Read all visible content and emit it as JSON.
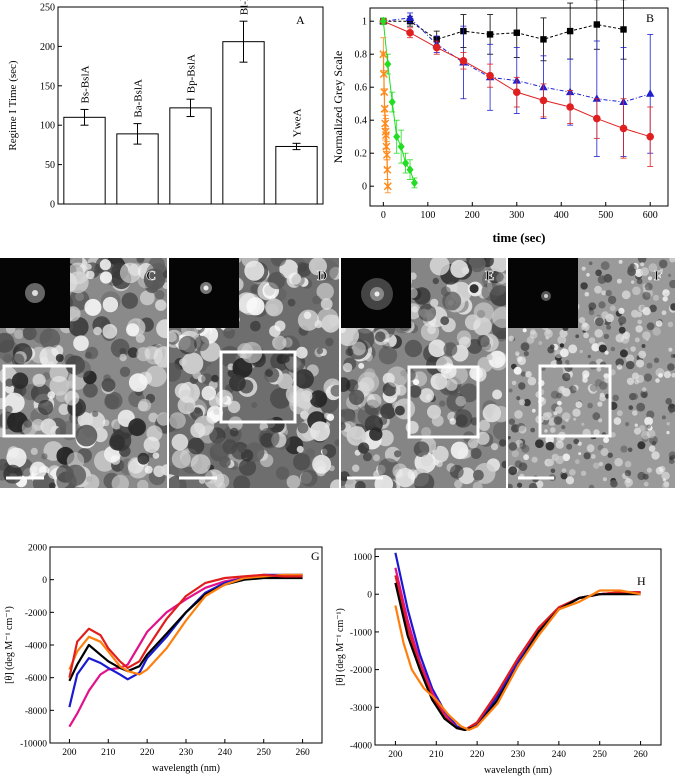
{
  "panel_labels": {
    "a": "A",
    "b": "B",
    "c": "C",
    "d": "D",
    "e": "E",
    "f": "F",
    "g": "G",
    "h": "H"
  },
  "chart_data": [
    {
      "id": "A",
      "type": "bar",
      "ylabel": "Regime I Time (sec)",
      "xlabel": "",
      "ylim": [
        0,
        250
      ],
      "yticks": [
        0,
        50,
        100,
        150,
        200,
        250
      ],
      "categories": [
        "Bs-BslA",
        "Ba-BslA",
        "Bp-BslA",
        "Bl-BslA",
        "YweA"
      ],
      "values": [
        110,
        89,
        122,
        206,
        73
      ],
      "errors": [
        10,
        13,
        11,
        26,
        4
      ],
      "grid": false
    },
    {
      "id": "B",
      "type": "scatter",
      "xlabel": "time (sec)",
      "ylabel": "Normalized Grey Scale",
      "xlim": [
        -30,
        640
      ],
      "ylim": [
        -0.12,
        1.08
      ],
      "xticks": [
        0,
        100,
        200,
        300,
        400,
        500,
        600
      ],
      "yticks": [
        0.0,
        0.2,
        0.4,
        0.6,
        0.8,
        1.0
      ],
      "grid": false,
      "series": [
        {
          "color": "#000000",
          "marker": "square",
          "dash": "3,2",
          "x": [
            0,
            60,
            120,
            180,
            240,
            300,
            360,
            420,
            480,
            540
          ],
          "y": [
            1.0,
            1.0,
            0.89,
            0.94,
            0.92,
            0.93,
            0.89,
            0.94,
            0.98,
            0.95
          ],
          "err": [
            0.02,
            0.03,
            0.05,
            0.1,
            0.12,
            0.15,
            0.13,
            0.17,
            0.15,
            0.18
          ]
        },
        {
          "color": "#1f1fd0",
          "marker": "triangle",
          "dash": "4,2,1,2",
          "x": [
            0,
            60,
            120,
            180,
            240,
            300,
            360,
            420,
            480,
            540,
            600
          ],
          "y": [
            1.0,
            1.02,
            0.86,
            0.75,
            0.66,
            0.64,
            0.6,
            0.57,
            0.53,
            0.51,
            0.56
          ],
          "err": [
            0.02,
            0.03,
            0.05,
            0.22,
            0.2,
            0.2,
            0.19,
            0.2,
            0.35,
            0.33,
            0.36
          ]
        },
        {
          "color": "#e02020",
          "marker": "circle",
          "dash": "",
          "x": [
            0,
            60,
            120,
            180,
            240,
            300,
            360,
            420,
            480,
            540,
            600
          ],
          "y": [
            1.0,
            0.93,
            0.84,
            0.76,
            0.67,
            0.57,
            0.52,
            0.48,
            0.41,
            0.35,
            0.3
          ],
          "err": [
            0.02,
            0.03,
            0.04,
            0.05,
            0.07,
            0.09,
            0.1,
            0.1,
            0.12,
            0.18,
            0.18
          ]
        },
        {
          "color": "#22dd22",
          "marker": "diamond",
          "dash": "",
          "x": [
            0,
            10,
            20,
            30,
            40,
            50,
            60,
            70
          ],
          "y": [
            1.0,
            0.74,
            0.51,
            0.3,
            0.24,
            0.14,
            0.1,
            0.02
          ],
          "err": [
            0.02,
            0.06,
            0.06,
            0.1,
            0.1,
            0.06,
            0.06,
            0.03
          ]
        },
        {
          "color": "#ff8a1a",
          "marker": "star",
          "dash": "",
          "x": [
            0,
            1,
            2,
            3,
            4,
            5,
            6,
            7,
            8,
            9,
            10
          ],
          "y": [
            0.8,
            0.68,
            0.57,
            0.47,
            0.38,
            0.33,
            0.31,
            0.24,
            0.19,
            0.1,
            0.0
          ],
          "err": [
            0.1,
            0.12,
            0.12,
            0.12,
            0.1,
            0.1,
            0.1,
            0.08,
            0.08,
            0.06,
            0.04
          ]
        }
      ]
    },
    {
      "id": "G",
      "type": "line",
      "xlabel": "wavelength (nm)",
      "ylabel": "[θ] (deg M⁻¹ cm⁻¹)",
      "xlim": [
        195,
        265
      ],
      "ylim": [
        -10000,
        2000
      ],
      "xticks": [
        200,
        210,
        220,
        230,
        240,
        250,
        260
      ],
      "yticks": [
        -10000,
        -8000,
        -6000,
        -4000,
        -2000,
        0,
        2000
      ],
      "grid": false,
      "series": [
        {
          "color": "#e2138a",
          "x": [
            200,
            202,
            205,
            208,
            210,
            213,
            215,
            218,
            220,
            225,
            230,
            235,
            240,
            245,
            250,
            255,
            260
          ],
          "y": [
            -9000,
            -8200,
            -6800,
            -5800,
            -5500,
            -5400,
            -5200,
            -4000,
            -3200,
            -2000,
            -1200,
            -500,
            -100,
            100,
            200,
            250,
            300
          ]
        },
        {
          "color": "#1a1ad0",
          "x": [
            200,
            202,
            205,
            208,
            210,
            213,
            215,
            218,
            220,
            225,
            230,
            235,
            240,
            245,
            250,
            255,
            260
          ],
          "y": [
            -7800,
            -5800,
            -4800,
            -5100,
            -5400,
            -5800,
            -6100,
            -5700,
            -4800,
            -3500,
            -2000,
            -800,
            -200,
            100,
            300,
            300,
            300
          ]
        },
        {
          "color": "#000000",
          "x": [
            200,
            202,
            205,
            208,
            210,
            213,
            215,
            218,
            220,
            225,
            230,
            235,
            240,
            245,
            250,
            255,
            260
          ],
          "y": [
            -6200,
            -5200,
            -4000,
            -4600,
            -5000,
            -5400,
            -5600,
            -5300,
            -4600,
            -3300,
            -2000,
            -900,
            -300,
            0,
            100,
            100,
            100
          ]
        },
        {
          "color": "#ff7f0e",
          "x": [
            200,
            202,
            205,
            208,
            210,
            213,
            215,
            218,
            220,
            225,
            230,
            235,
            240,
            245,
            250,
            255,
            260
          ],
          "y": [
            -5500,
            -4400,
            -3500,
            -3800,
            -4400,
            -5300,
            -5600,
            -5800,
            -5500,
            -4200,
            -2500,
            -1000,
            -300,
            100,
            200,
            300,
            300
          ]
        },
        {
          "color": "#e01e1e",
          "x": [
            200,
            202,
            205,
            208,
            210,
            213,
            215,
            218,
            220,
            225,
            230,
            235,
            240,
            245,
            250,
            255,
            260
          ],
          "y": [
            -6000,
            -3800,
            -3000,
            -3400,
            -4200,
            -5000,
            -5400,
            -5000,
            -4200,
            -2400,
            -1000,
            -200,
            100,
            200,
            300,
            200,
            200
          ]
        }
      ]
    },
    {
      "id": "H",
      "type": "line",
      "xlabel": "wavelength (nm)",
      "ylabel": "[θ] (deg M⁻¹ cm⁻¹)",
      "xlim": [
        195,
        265
      ],
      "ylim": [
        -4000,
        1200
      ],
      "xticks": [
        200,
        210,
        220,
        230,
        240,
        250,
        260
      ],
      "yticks": [
        -4000,
        -3000,
        -2000,
        -1000,
        0,
        1000
      ],
      "grid": false,
      "series": [
        {
          "color": "#1a1ad0",
          "x": [
            200,
            203,
            206,
            209,
            212,
            215,
            217,
            220,
            225,
            230,
            235,
            240,
            245,
            250,
            255,
            260
          ],
          "y": [
            1100,
            -400,
            -1600,
            -2500,
            -3100,
            -3500,
            -3600,
            -3450,
            -2700,
            -1800,
            -1000,
            -400,
            -100,
            0,
            50,
            50
          ]
        },
        {
          "color": "#e2138a",
          "x": [
            200,
            203,
            206,
            209,
            212,
            215,
            217,
            220,
            225,
            230,
            235,
            240,
            245,
            250,
            255,
            260
          ],
          "y": [
            700,
            -700,
            -1800,
            -2600,
            -3200,
            -3550,
            -3600,
            -3400,
            -2600,
            -1700,
            -900,
            -350,
            -100,
            0,
            50,
            50
          ]
        },
        {
          "color": "#e01e1e",
          "x": [
            200,
            203,
            206,
            209,
            212,
            215,
            217,
            220,
            225,
            230,
            235,
            240,
            245,
            250,
            255,
            260
          ],
          "y": [
            500,
            -900,
            -1900,
            -2700,
            -3250,
            -3550,
            -3600,
            -3400,
            -2600,
            -1700,
            -900,
            -350,
            -100,
            0,
            50,
            50
          ]
        },
        {
          "color": "#000000",
          "x": [
            200,
            203,
            206,
            209,
            212,
            215,
            217,
            220,
            225,
            230,
            235,
            240,
            245,
            250,
            255,
            260
          ],
          "y": [
            300,
            -1100,
            -2000,
            -2800,
            -3300,
            -3550,
            -3600,
            -3500,
            -2800,
            -1900,
            -1000,
            -400,
            -100,
            0,
            0,
            0
          ]
        },
        {
          "color": "#ff7f0e",
          "x": [
            200,
            202,
            204,
            207,
            210,
            213,
            216,
            218,
            220,
            225,
            230,
            235,
            240,
            245,
            250,
            255,
            260
          ],
          "y": [
            -300,
            -1300,
            -2000,
            -2500,
            -2800,
            -3200,
            -3500,
            -3600,
            -3500,
            -2900,
            -1900,
            -1100,
            -400,
            -200,
            100,
            100,
            0
          ]
        }
      ]
    }
  ]
}
